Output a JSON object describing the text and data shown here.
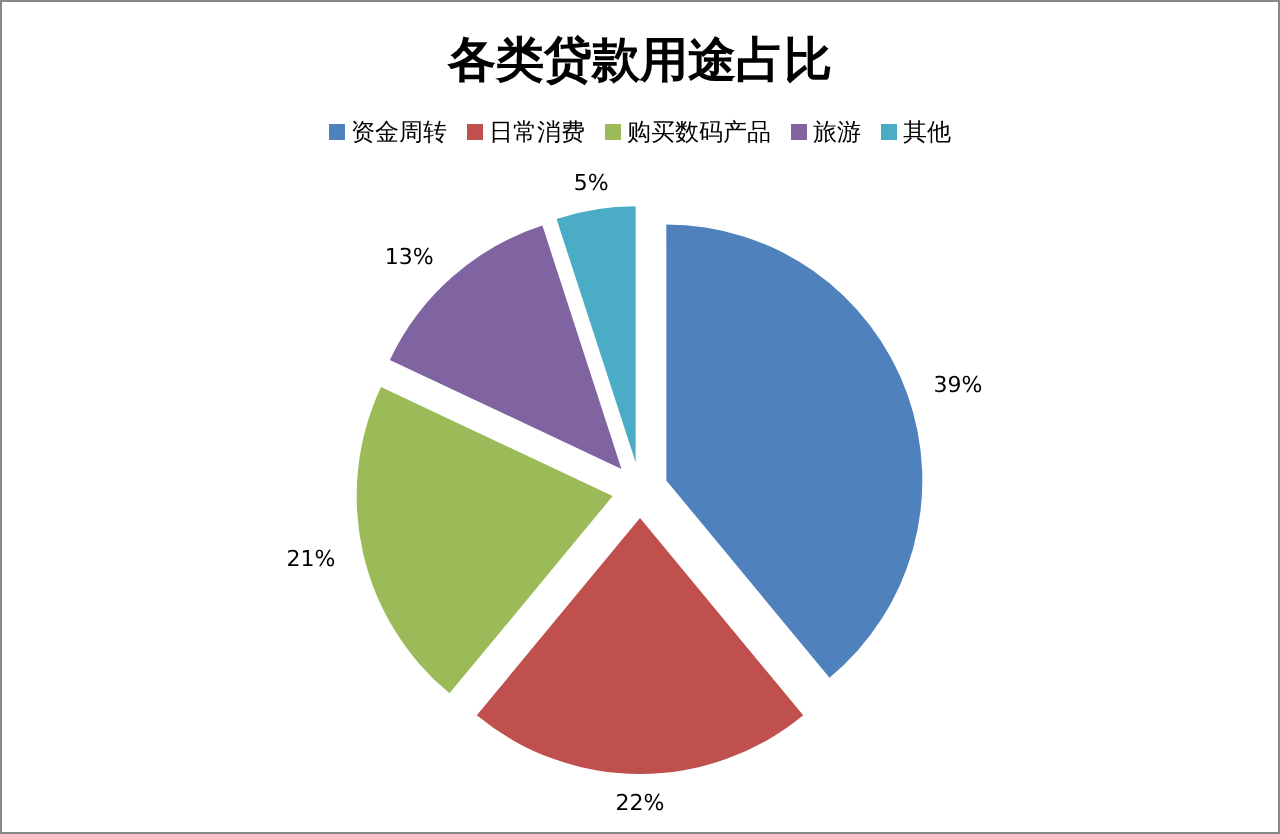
{
  "chart_data": {
    "type": "pie",
    "title": "各类贷款用途占比",
    "categories": [
      "资金周转",
      "日常消费",
      "购买数码产品",
      "旅游",
      "其他"
    ],
    "values": [
      39,
      22,
      21,
      13,
      5
    ],
    "value_labels": [
      "39%",
      "22%",
      "21%",
      "13%",
      "5%"
    ],
    "colors": [
      "#4f81bd",
      "#c0504d",
      "#9bbb59",
      "#8064a2",
      "#4bacc6"
    ],
    "legend": "top"
  }
}
